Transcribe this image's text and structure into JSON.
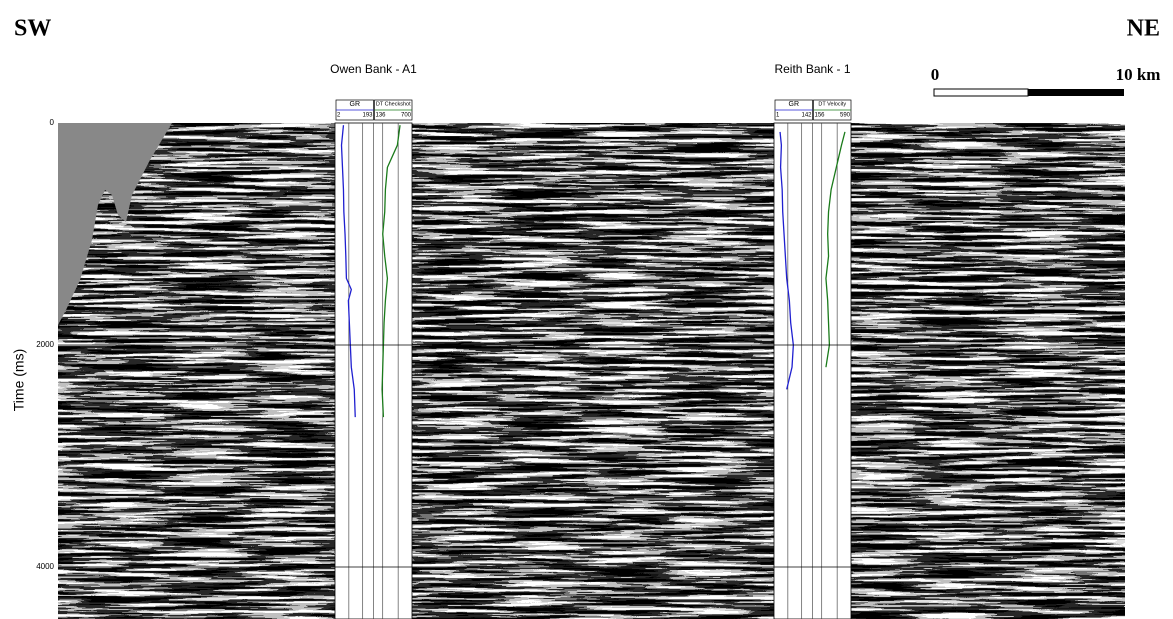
{
  "header": {
    "left": "SW",
    "right": "NE"
  },
  "scale_bar": {
    "start_label": "0",
    "end_label": "10 km"
  },
  "axis": {
    "label": "Time (ms)",
    "ylim": [
      0,
      4450
    ],
    "yticks": [
      0,
      2000,
      4000
    ]
  },
  "wells": [
    {
      "name": "Owen Bank - A1",
      "logs": [
        {
          "name": "GR",
          "min": 2,
          "max": 193,
          "color": "#1f1fd0",
          "time": [
            20,
            200,
            400,
            600,
            800,
            1000,
            1200,
            1400,
            1500,
            1600,
            1800,
            2000,
            2200,
            2400,
            2650
          ],
          "values": [
            40,
            30,
            35,
            40,
            42,
            48,
            52,
            55,
            80,
            65,
            70,
            75,
            80,
            95,
            100
          ]
        },
        {
          "name": "DT Checkshot",
          "min": 136,
          "max": 700,
          "color": "#1a7a1a",
          "time": [
            20,
            200,
            400,
            600,
            800,
            1000,
            1200,
            1400,
            1600,
            1800,
            2000,
            2200,
            2400,
            2650
          ],
          "values": [
            520,
            480,
            330,
            300,
            290,
            260,
            290,
            330,
            300,
            280,
            270,
            260,
            250,
            270
          ]
        }
      ]
    },
    {
      "name": "Reith Bank - 1",
      "logs": [
        {
          "name": "GR",
          "min": 1,
          "max": 142,
          "color": "#1f1fd0",
          "time": [
            80,
            200,
            400,
            600,
            800,
            1000,
            1200,
            1400,
            1600,
            1800,
            2000,
            2200,
            2400
          ],
          "values": [
            20,
            25,
            22,
            28,
            30,
            35,
            40,
            45,
            55,
            60,
            70,
            65,
            45
          ]
        },
        {
          "name": "DT Velocity",
          "min": 156,
          "max": 590,
          "color": "#1a7a1a",
          "time": [
            80,
            200,
            400,
            600,
            800,
            1000,
            1200,
            1400,
            1600,
            1800,
            2000,
            2200
          ],
          "values": [
            520,
            480,
            420,
            360,
            330,
            320,
            330,
            300,
            320,
            330,
            340,
            300
          ]
        }
      ]
    }
  ]
}
